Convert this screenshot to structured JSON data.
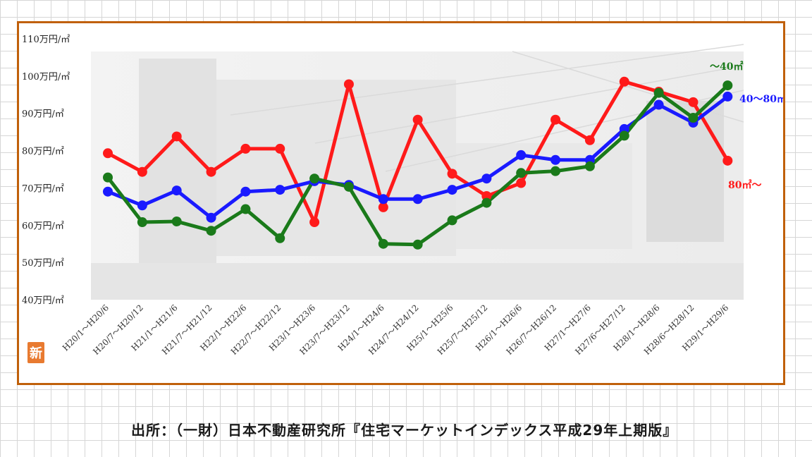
{
  "source_note": "出所：（一財）日本不動産研究所『住宅マーケットインデックス平成29年上期版』",
  "logo_text": "新",
  "colors": {
    "frame": "#c0600a",
    "series_red": "#ff1a1a",
    "series_blue": "#1a1aff",
    "series_green": "#1a7a1a",
    "logo": "#e87a30"
  },
  "chart_data": {
    "type": "line",
    "title": "",
    "xlabel": "",
    "ylabel": "",
    "ylim": [
      40,
      110
    ],
    "y_ticks": [
      40,
      50,
      60,
      70,
      80,
      90,
      100,
      110
    ],
    "y_tick_labels": [
      "40万円/㎡",
      "50万円/㎡",
      "60万円/㎡",
      "70万円/㎡",
      "80万円/㎡",
      "90万円/㎡",
      "100万円/㎡",
      "110万円/㎡"
    ],
    "categories": [
      "H20/1～H20/6",
      "H20/7～H20/12",
      "H21/1～H21/6",
      "H21/7～H21/12",
      "H22/1～H22/6",
      "H22/7～H22/12",
      "H23/1～H23/6",
      "H23/7～H23/12",
      "H24/1～H24/6",
      "H24/7～H24/12",
      "H25/1～H25/6",
      "H25/7～H25/12",
      "H26/1～H26/6",
      "H26/7～H26/12",
      "H27/1～H27/6",
      "H27/6～H27/12",
      "H28/1～H28/6",
      "H28/6～H28/12",
      "H29/1～H29/6"
    ],
    "grid": false,
    "legend": "direct labels at right end",
    "series": [
      {
        "name": "80㎡～",
        "color": "#ff1a1a",
        "values": [
          79.3,
          74.3,
          83.8,
          74.3,
          80.5,
          80.5,
          60.8,
          97.8,
          64.8,
          88.3,
          73.8,
          67.8,
          71.3,
          88.3,
          82.8,
          98.5,
          95.8,
          93.0,
          77.3
        ]
      },
      {
        "name": "40～80㎡",
        "color": "#1a1aff",
        "values": [
          69.0,
          65.3,
          69.3,
          62.0,
          69.0,
          69.5,
          71.8,
          70.8,
          67.0,
          67.0,
          69.5,
          72.5,
          78.8,
          77.5,
          77.5,
          85.8,
          92.3,
          87.5,
          94.5
        ]
      },
      {
        "name": "～40㎡",
        "color": "#1a7a1a",
        "values": [
          72.8,
          60.8,
          61.0,
          58.5,
          64.3,
          56.5,
          72.5,
          70.3,
          55.0,
          54.8,
          61.3,
          66.0,
          74.0,
          74.5,
          75.8,
          84.0,
          95.5,
          88.8,
          97.5
        ]
      }
    ]
  }
}
